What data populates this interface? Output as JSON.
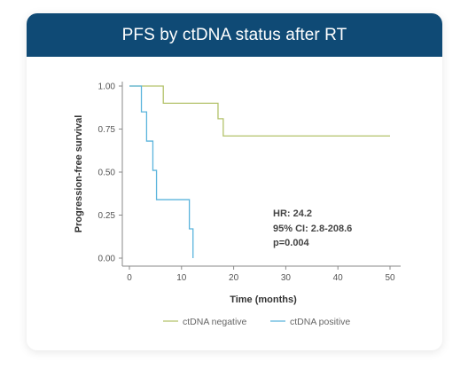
{
  "header": {
    "title": "PFS by ctDNA status after RT"
  },
  "colors": {
    "header_bg": "#0f4a75",
    "negative": "#b3c26a",
    "positive": "#5ab4dc",
    "axis": "#8a8a8a"
  },
  "chart_data": {
    "type": "line",
    "step": true,
    "title": "PFS by ctDNA status after RT",
    "xlabel": "Time (months)",
    "ylabel": "Progression-free survival",
    "xlim": [
      0,
      52
    ],
    "ylim": [
      0,
      1
    ],
    "xticks": [
      "0",
      "10",
      "20",
      "30",
      "40",
      "50"
    ],
    "xtick_values": [
      0,
      10,
      20,
      30,
      40,
      50
    ],
    "yticks": [
      "0.00",
      "0.25",
      "0.50",
      "0.75",
      "1.00"
    ],
    "ytick_values": [
      0,
      0.25,
      0.5,
      0.75,
      1.0
    ],
    "grid": false,
    "legend_position": "bottom",
    "annotation": [
      "HR: 24.2",
      "95% CI: 2.8-208.6",
      "p=0.004"
    ],
    "series": [
      {
        "name": "ctDNA negative",
        "x": [
          0,
          6.5,
          17,
          18,
          50
        ],
        "y": [
          1.0,
          0.9,
          0.81,
          0.71,
          0.71
        ]
      },
      {
        "name": "ctDNA positive",
        "x": [
          0,
          2.3,
          3.3,
          4.5,
          5.2,
          11.5,
          12.2
        ],
        "y": [
          1.0,
          0.85,
          0.68,
          0.51,
          0.34,
          0.17,
          0.0
        ]
      }
    ]
  }
}
